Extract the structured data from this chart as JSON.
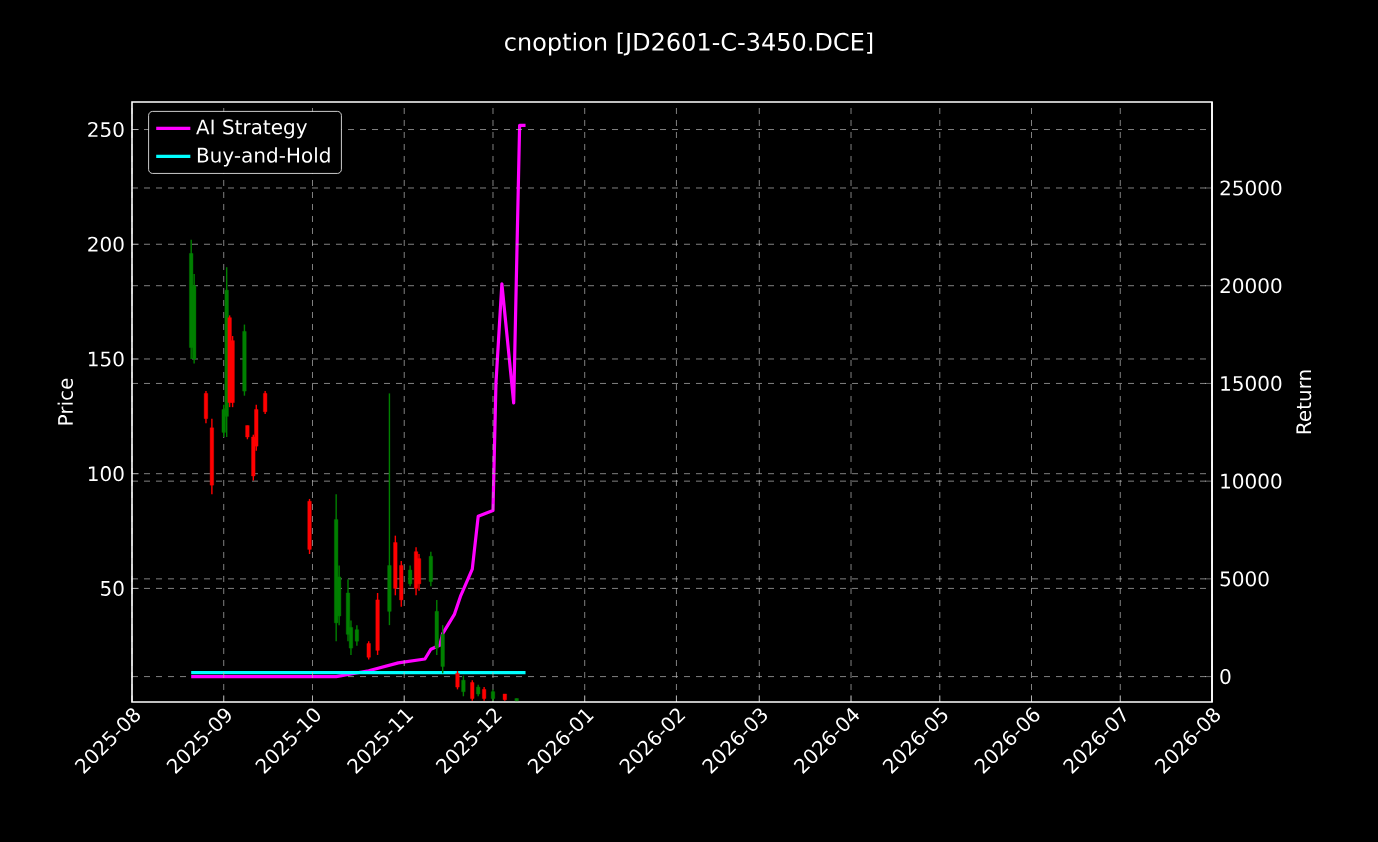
{
  "chart_data": {
    "type": "candlestick",
    "title": "cnoption [JD2601-C-3450.DCE]",
    "ylabel": "Price",
    "y2label": "Return",
    "x": [
      "2025-08-21",
      "2025-08-22",
      "2025-08-26",
      "2025-08-28",
      "2025-09-01",
      "2025-09-02",
      "2025-09-03",
      "2025-09-04",
      "2025-09-08",
      "2025-09-09",
      "2025-09-11",
      "2025-09-12",
      "2025-09-15",
      "2025-09-30",
      "2025-10-09",
      "2025-10-10",
      "2025-10-13",
      "2025-10-14",
      "2025-10-16",
      "2025-10-20",
      "2025-10-23",
      "2025-10-27",
      "2025-10-29",
      "2025-10-31",
      "2025-11-03",
      "2025-11-05",
      "2025-11-06",
      "2025-11-10",
      "2025-11-12",
      "2025-11-14",
      "2025-11-19",
      "2025-11-21",
      "2025-11-24",
      "2025-11-26",
      "2025-11-28",
      "2025-12-01",
      "2025-12-05",
      "2025-12-09"
    ],
    "ohlc": [
      [
        155,
        202,
        150,
        196
      ],
      [
        150,
        187,
        148,
        182
      ],
      [
        135,
        136,
        122,
        124
      ],
      [
        120,
        124,
        91,
        95
      ],
      [
        118,
        130,
        116,
        128
      ],
      [
        125,
        190,
        116,
        180
      ],
      [
        168,
        169,
        129,
        131
      ],
      [
        158,
        160,
        129,
        131
      ],
      [
        136,
        165,
        134,
        162
      ],
      [
        121,
        121,
        115,
        116
      ],
      [
        116,
        117,
        97,
        99
      ],
      [
        128,
        130,
        110,
        112
      ],
      [
        135,
        136,
        126,
        127
      ],
      [
        88,
        89,
        65,
        67
      ],
      [
        35,
        91,
        27,
        80
      ],
      [
        38,
        60,
        34,
        55
      ],
      [
        30,
        54,
        27,
        48
      ],
      [
        24,
        36,
        21,
        33
      ],
      [
        27,
        34,
        25,
        32
      ],
      [
        26,
        27,
        19,
        20
      ],
      [
        45,
        48,
        21,
        23
      ],
      [
        40,
        135,
        34,
        60
      ],
      [
        70,
        73,
        47,
        50
      ],
      [
        60,
        62,
        42,
        45
      ],
      [
        52,
        60,
        51,
        58
      ],
      [
        66,
        68,
        47,
        50
      ],
      [
        63,
        65,
        49,
        52
      ],
      [
        53,
        66,
        51,
        64
      ],
      [
        24,
        45,
        21,
        40
      ],
      [
        16,
        34,
        13,
        30
      ],
      [
        13,
        14,
        6,
        7
      ],
      [
        5,
        12,
        3,
        10
      ],
      [
        9,
        10,
        1,
        2
      ],
      [
        4,
        8,
        3,
        7
      ],
      [
        6,
        7,
        1,
        2
      ],
      [
        2,
        6,
        1,
        5
      ],
      [
        4,
        4,
        1,
        1.5
      ],
      [
        1,
        2,
        1,
        2
      ]
    ],
    "colors": [
      "#008000",
      "#008000",
      "#ff0000",
      "#ff0000",
      "#008000",
      "#008000",
      "#ff0000",
      "#ff0000",
      "#008000",
      "#ff0000",
      "#ff0000",
      "#ff0000",
      "#ff0000",
      "#ff0000",
      "#008000",
      "#008000",
      "#008000",
      "#008000",
      "#008000",
      "#ff0000",
      "#ff0000",
      "#008000",
      "#ff0000",
      "#ff0000",
      "#008000",
      "#ff0000",
      "#ff0000",
      "#008000",
      "#008000",
      "#008000",
      "#ff0000",
      "#008000",
      "#ff0000",
      "#008000",
      "#ff0000",
      "#008000",
      "#ff0000",
      "#008000"
    ],
    "series": [
      {
        "name": "AI Strategy",
        "type": "line",
        "axis": "y2",
        "color": "#ff00ff",
        "x": [
          "2025-08-21",
          "2025-10-09",
          "2025-10-20",
          "2025-10-30",
          "2025-11-08",
          "2025-11-10",
          "2025-11-13",
          "2025-11-14",
          "2025-11-18",
          "2025-11-20",
          "2025-11-24",
          "2025-11-26",
          "2025-12-01",
          "2025-12-02",
          "2025-12-04",
          "2025-12-08",
          "2025-12-10",
          "2025-12-12"
        ],
        "values": [
          0,
          0,
          300,
          700,
          900,
          1400,
          1600,
          2200,
          3200,
          4100,
          5500,
          8200,
          8500,
          15000,
          20100,
          14000,
          28200,
          28200
        ]
      },
      {
        "name": "Buy-and-Hold",
        "type": "line",
        "axis": "y2",
        "color": "#00ffff",
        "x": [
          "2025-08-21",
          "2025-12-12"
        ],
        "values": [
          200,
          200
        ]
      }
    ],
    "xlim": [
      "2025-08-01",
      "2026-08-01"
    ],
    "xticks": [
      "2025-08",
      "2025-09",
      "2025-10",
      "2025-11",
      "2025-12",
      "2026-01",
      "2026-02",
      "2026-03",
      "2026-04",
      "2026-05",
      "2026-06",
      "2026-07",
      "2026-08"
    ],
    "ylim": [
      0.5,
      262
    ],
    "yticks": [
      50,
      100,
      150,
      200,
      250
    ],
    "y2lim": [
      -1300,
      29400
    ],
    "y2ticks": [
      0,
      5000,
      10000,
      15000,
      20000,
      25000
    ],
    "grid": true,
    "legend": "top left"
  }
}
